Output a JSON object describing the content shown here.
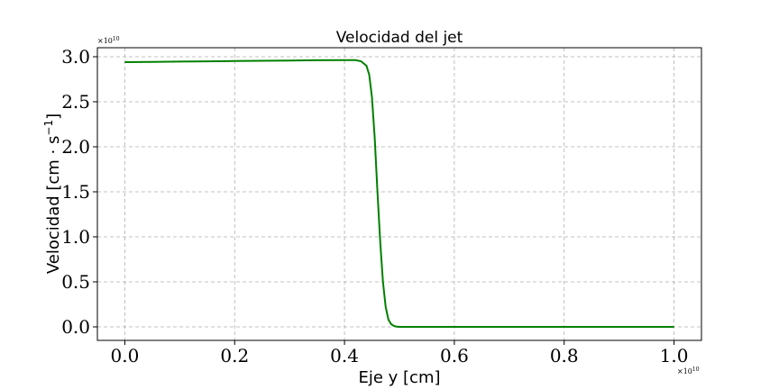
{
  "chart_data": {
    "type": "line",
    "title": "Velocidad del jet",
    "xlabel": "Eje y [cm]",
    "ylabel": "Velocidad [cm · s",
    "ylabel_sup": "−1",
    "ylabel_close": "]",
    "x_multiplier": "×10",
    "x_multiplier_exp": "10",
    "y_multiplier": "×10",
    "y_multiplier_exp": "10",
    "xlim": [
      -0.05,
      1.05
    ],
    "ylim": [
      -0.15,
      3.1
    ],
    "x_ticks": [
      0.0,
      0.2,
      0.4,
      0.6,
      0.8,
      1.0
    ],
    "x_tick_labels": [
      "0.0",
      "0.2",
      "0.4",
      "0.6",
      "0.8",
      "1.0"
    ],
    "y_ticks": [
      0.0,
      0.5,
      1.0,
      1.5,
      2.0,
      2.5,
      3.0
    ],
    "y_tick_labels": [
      "0.0",
      "0.5",
      "1.0",
      "1.5",
      "2.0",
      "2.5",
      "3.0"
    ],
    "grid": true,
    "series": [
      {
        "name": "",
        "color": "#008000",
        "x": [
          0.0,
          0.05,
          0.1,
          0.15,
          0.2,
          0.25,
          0.3,
          0.35,
          0.4,
          0.42,
          0.43,
          0.44,
          0.445,
          0.45,
          0.455,
          0.46,
          0.465,
          0.47,
          0.475,
          0.48,
          0.485,
          0.49,
          0.495,
          0.5,
          0.55,
          0.6,
          0.7,
          0.8,
          0.9,
          1.0
        ],
        "y": [
          2.94,
          2.943,
          2.946,
          2.949,
          2.952,
          2.955,
          2.958,
          2.961,
          2.963,
          2.962,
          2.95,
          2.9,
          2.8,
          2.55,
          2.1,
          1.5,
          0.95,
          0.5,
          0.22,
          0.08,
          0.03,
          0.01,
          0.003,
          0.0,
          0.0,
          0.0,
          0.0,
          0.0,
          0.0,
          0.0
        ]
      }
    ]
  }
}
